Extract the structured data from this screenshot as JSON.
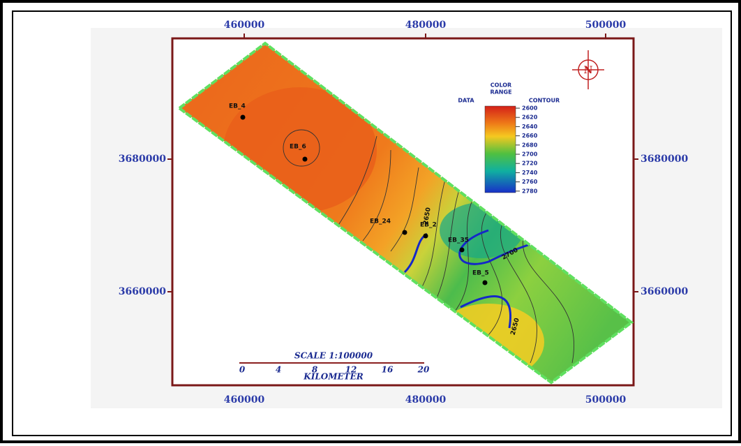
{
  "axes": {
    "top": [
      "460000",
      "480000",
      "500000"
    ],
    "bottom": [
      "460000",
      "480000",
      "500000"
    ],
    "left": [
      "3680000",
      "3660000"
    ],
    "right": [
      "3680000",
      "3660000"
    ]
  },
  "legend": {
    "title": [
      "COLOR",
      "RANGE"
    ],
    "data_label": "DATA",
    "contour_label": "CONTOUR",
    "values": [
      "2600",
      "2620",
      "2640",
      "2660",
      "2680",
      "2700",
      "2720",
      "2740",
      "2760",
      "2780"
    ]
  },
  "wells": [
    {
      "label": "EB_4"
    },
    {
      "label": "EB_6"
    },
    {
      "label": "EB_24"
    },
    {
      "label": "EB_2"
    },
    {
      "label": "EB_35"
    },
    {
      "label": "EB_5"
    }
  ],
  "contour_labels": [
    "2650",
    "2700",
    "2650"
  ],
  "scale": {
    "title": "SCALE 1:100000",
    "ticks": [
      "0",
      "4",
      "8",
      "12",
      "16",
      "20"
    ],
    "unit": "KILOMETER"
  },
  "compass": "N"
}
